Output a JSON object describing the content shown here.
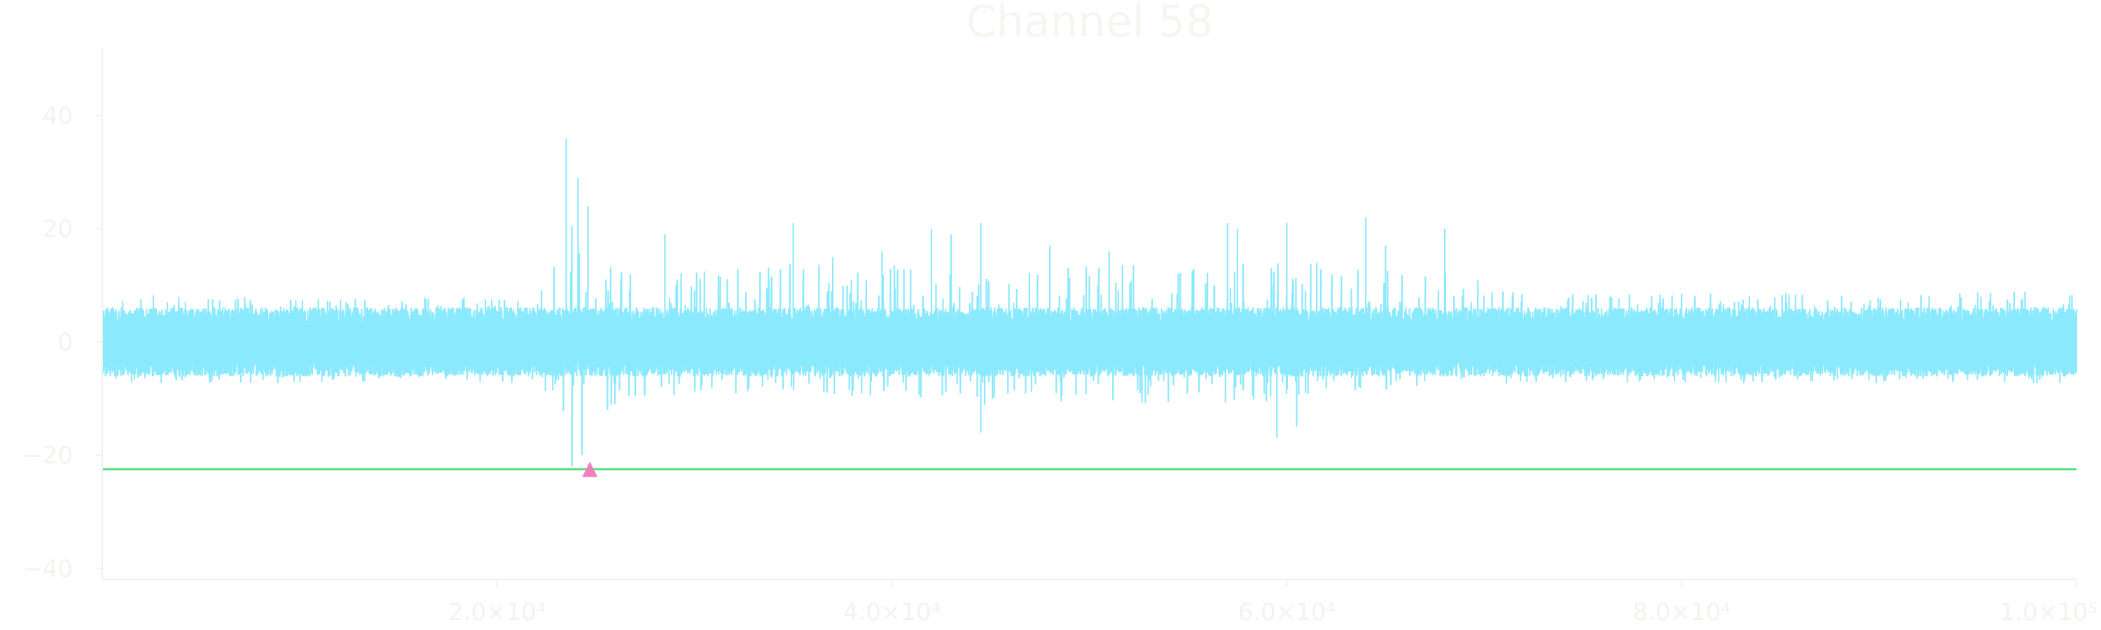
{
  "chart_data": {
    "type": "line",
    "title": "Channel 58",
    "xlabel": "",
    "ylabel": "",
    "xlim": [
      0,
      100000
    ],
    "ylim": [
      -42,
      52
    ],
    "x_ticks": [
      {
        "value": 20000,
        "label": "2.0×10⁴"
      },
      {
        "value": 40000,
        "label": "4.0×10⁴"
      },
      {
        "value": 60000,
        "label": "6.0×10⁴"
      },
      {
        "value": 80000,
        "label": "8.0×10⁴"
      },
      {
        "value": 100000,
        "label": "1.0×10⁵"
      }
    ],
    "y_ticks": [
      {
        "value": 40,
        "label": "40"
      },
      {
        "value": 20,
        "label": "20"
      },
      {
        "value": 0,
        "label": "0"
      },
      {
        "value": -20,
        "label": "−20"
      },
      {
        "value": -40,
        "label": "−40"
      }
    ],
    "grid": false,
    "series": [
      {
        "kind": "signal",
        "color": "#8be9fd",
        "baseline_amplitude": 5,
        "envelope": [
          {
            "x": 0,
            "min": -9,
            "max": 11
          },
          {
            "x": 22000,
            "min": -9,
            "max": 10
          },
          {
            "x": 23500,
            "min": -20,
            "max": 36
          },
          {
            "x": 24700,
            "min": -22,
            "max": 24
          },
          {
            "x": 27000,
            "min": -14,
            "max": 17
          },
          {
            "x": 35000,
            "min": -12,
            "max": 21
          },
          {
            "x": 44000,
            "min": -16,
            "max": 20
          },
          {
            "x": 60000,
            "min": -15,
            "max": 21
          },
          {
            "x": 64000,
            "min": -11,
            "max": 22
          },
          {
            "x": 68000,
            "min": -13,
            "max": 20
          },
          {
            "x": 72000,
            "min": -9,
            "max": 11
          },
          {
            "x": 100000,
            "min": -9,
            "max": 12
          }
        ],
        "spikes": [
          {
            "x": 23500,
            "y": 36
          },
          {
            "x": 24100,
            "y": 29
          },
          {
            "x": 24600,
            "y": 24
          },
          {
            "x": 28500,
            "y": 19
          },
          {
            "x": 35000,
            "y": 21
          },
          {
            "x": 37000,
            "y": 15
          },
          {
            "x": 39500,
            "y": 16
          },
          {
            "x": 42000,
            "y": 20
          },
          {
            "x": 43000,
            "y": 19
          },
          {
            "x": 44500,
            "y": 21
          },
          {
            "x": 48000,
            "y": 17
          },
          {
            "x": 51000,
            "y": 16
          },
          {
            "x": 57000,
            "y": 21
          },
          {
            "x": 57500,
            "y": 20
          },
          {
            "x": 60000,
            "y": 21
          },
          {
            "x": 64000,
            "y": 22
          },
          {
            "x": 65000,
            "y": 17
          },
          {
            "x": 68000,
            "y": 20
          },
          {
            "x": 23800,
            "y": -22
          },
          {
            "x": 24300,
            "y": -20
          },
          {
            "x": 44500,
            "y": -16
          },
          {
            "x": 59500,
            "y": -17
          },
          {
            "x": 60500,
            "y": -15
          }
        ]
      },
      {
        "kind": "threshold",
        "color": "#50e080",
        "y": -22.5
      }
    ],
    "markers": [
      {
        "shape": "triangle",
        "color": "#ef80b9",
        "x": 24700,
        "y": -22.5
      }
    ]
  }
}
